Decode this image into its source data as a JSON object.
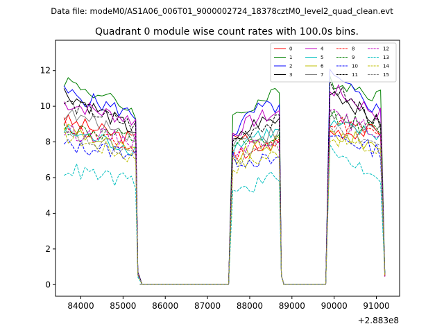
{
  "figure": {
    "suptitle": "Data file: modeM0/AS1A06_006T01_9000002724_18378cztM0_level2_quad_clean.evt"
  },
  "chart_data": {
    "type": "line",
    "title": "Quadrant 0 module wise count rates with 100.0s bins.",
    "xlabel": "",
    "ylabel": "",
    "x_offset_label": "+2.883e8",
    "xlim": [
      83400,
      91550
    ],
    "ylim": [
      -0.65,
      13.7
    ],
    "xticks": [
      84000,
      85000,
      86000,
      87000,
      88000,
      89000,
      90000,
      91000
    ],
    "yticks": [
      0,
      2,
      4,
      6,
      8,
      10,
      12
    ],
    "grid": false,
    "legend_position": "top-right",
    "legend_columns": 4,
    "segments": [
      [
        83600,
        85300
      ],
      [
        87600,
        88700
      ],
      [
        89900,
        91200
      ]
    ],
    "gap_ranges": [
      [
        85400,
        87500
      ],
      [
        88800,
        89800
      ]
    ],
    "transitions": {
      "seg1_fall": [
        [
          85350,
          0.6
        ],
        [
          85450,
          0.02
        ]
      ],
      "seg2_rise_from": 87500,
      "seg2_fall": [
        [
          88750,
          0.5
        ],
        [
          88800,
          0.1
        ]
      ],
      "seg3_rise_from": 89800,
      "seg3_end": 91200
    },
    "series": [
      {
        "name": "0",
        "color": "#ff0000",
        "dash": "solid",
        "levels": [
          9.2,
          8.1,
          8.7,
          7.6,
          8.0,
          8.6,
          8.6
        ]
      },
      {
        "name": "1",
        "color": "#008000",
        "dash": "solid",
        "levels": [
          11.5,
          9.7,
          9.3,
          10.2,
          10.7,
          11.5,
          10.5
        ]
      },
      {
        "name": "2",
        "color": "#0000ff",
        "dash": "solid",
        "levels": [
          10.8,
          9.5,
          8.5,
          9.8,
          10.0,
          11.7,
          9.5
        ]
      },
      {
        "name": "3",
        "color": "#000000",
        "dash": "solid",
        "levels": [
          10.8,
          8.6,
          7.8,
          9.1,
          9.2,
          11.0,
          8.8
        ]
      },
      {
        "name": "4",
        "color": "#bf00bf",
        "dash": "solid",
        "levels": [
          10.2,
          9.2,
          8.5,
          9.3,
          9.6,
          11.0,
          9.4
        ]
      },
      {
        "name": "5",
        "color": "#00bfbf",
        "dash": "solid",
        "levels": [
          8.6,
          7.6,
          7.7,
          8.4,
          8.5,
          8.9,
          8.3
        ]
      },
      {
        "name": "6",
        "color": "#bfbf00",
        "dash": "solid",
        "levels": [
          8.9,
          7.3,
          7.0,
          7.6,
          8.0,
          8.5,
          7.7
        ]
      },
      {
        "name": "7",
        "color": "#7f7f7f",
        "dash": "solid",
        "levels": [
          9.6,
          8.4,
          8.0,
          8.3,
          8.5,
          9.5,
          8.5
        ]
      },
      {
        "name": "8",
        "color": "#ff0000",
        "dash": "dashed",
        "levels": [
          9.0,
          7.5,
          7.3,
          7.6,
          7.9,
          9.3,
          8.2
        ]
      },
      {
        "name": "9",
        "color": "#008000",
        "dash": "dashed",
        "levels": [
          8.8,
          8.1,
          7.8,
          7.8,
          8.1,
          9.6,
          8.4
        ]
      },
      {
        "name": "10",
        "color": "#0000ff",
        "dash": "dashed",
        "levels": [
          7.8,
          7.4,
          7.0,
          7.0,
          6.8,
          8.4,
          7.4
        ]
      },
      {
        "name": "11",
        "color": "#000000",
        "dash": "dashed",
        "levels": [
          10.2,
          8.9,
          8.0,
          8.9,
          9.1,
          11.3,
          8.6
        ]
      },
      {
        "name": "12",
        "color": "#bf00bf",
        "dash": "dashed",
        "levels": [
          8.6,
          8.1,
          7.6,
          7.9,
          8.4,
          9.5,
          8.4
        ]
      },
      {
        "name": "13",
        "color": "#00bfbf",
        "dash": "dashed",
        "levels": [
          6.5,
          5.7,
          5.1,
          5.6,
          6.2,
          7.4,
          6.0
        ]
      },
      {
        "name": "14",
        "color": "#bfbf00",
        "dash": "dashed",
        "levels": [
          8.4,
          7.1,
          6.6,
          7.0,
          7.4,
          8.3,
          7.3
        ]
      },
      {
        "name": "15",
        "color": "#7f7f7f",
        "dash": "dashed",
        "levels": [
          8.3,
          7.4,
          6.9,
          7.5,
          7.8,
          9.0,
          7.7
        ]
      }
    ]
  }
}
